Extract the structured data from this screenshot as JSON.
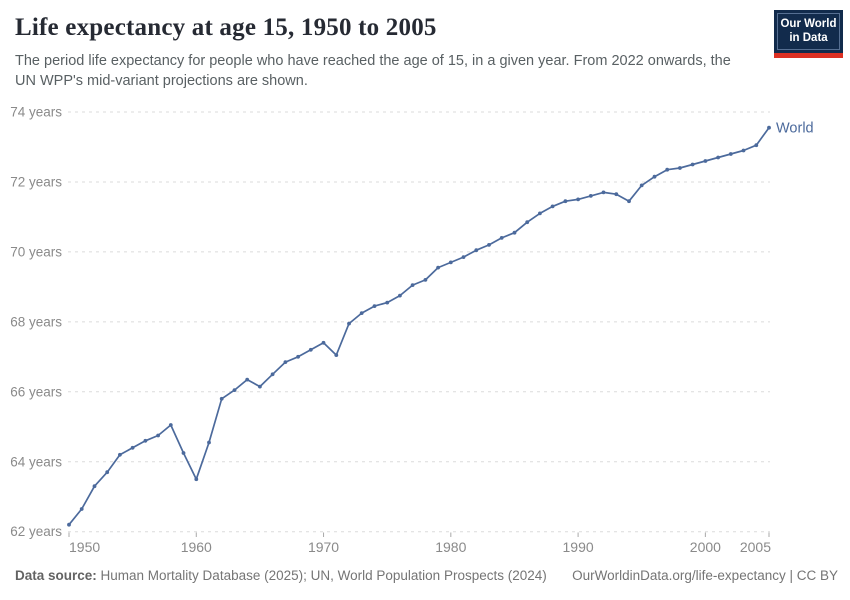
{
  "header": {
    "title": "Life expectancy at age 15, 1950 to 2005",
    "subtitle_line1": "The period life expectancy for people who have reached the age of 15, in a given year. From 2022 onwards, the",
    "subtitle_line2": "UN WPP's mid-variant projections are shown."
  },
  "logo": {
    "line1": "Our World",
    "line2": "in Data",
    "bg_color": "#122B4C",
    "stripe_color": "#DC3023"
  },
  "chart_data": {
    "type": "line",
    "title": "Life expectancy at age 15, 1950 to 2005",
    "series": [
      {
        "name": "World",
        "x": [
          1950,
          1951,
          1952,
          1953,
          1954,
          1955,
          1956,
          1957,
          1958,
          1959,
          1960,
          1961,
          1962,
          1963,
          1964,
          1965,
          1966,
          1967,
          1968,
          1969,
          1970,
          1971,
          1972,
          1973,
          1974,
          1975,
          1976,
          1977,
          1978,
          1979,
          1980,
          1981,
          1982,
          1983,
          1984,
          1985,
          1986,
          1987,
          1988,
          1989,
          1990,
          1991,
          1992,
          1993,
          1994,
          1995,
          1996,
          1997,
          1998,
          1999,
          2000,
          2001,
          2002,
          2003,
          2004,
          2005
        ],
        "values": [
          62.2,
          62.65,
          63.3,
          63.7,
          64.2,
          64.4,
          64.6,
          64.75,
          65.05,
          64.25,
          63.5,
          64.55,
          65.8,
          66.05,
          66.35,
          66.15,
          66.5,
          66.85,
          67.0,
          67.2,
          67.4,
          67.05,
          67.95,
          68.25,
          68.45,
          68.55,
          68.75,
          69.05,
          69.2,
          69.55,
          69.7,
          69.85,
          70.05,
          70.2,
          70.4,
          70.55,
          70.85,
          71.1,
          71.3,
          71.45,
          71.5,
          71.6,
          71.7,
          71.65,
          71.45,
          71.9,
          72.15,
          72.35,
          72.4,
          72.5,
          72.6,
          72.7,
          72.8,
          72.9,
          73.05,
          73.55
        ]
      }
    ],
    "series_end_label": "World",
    "xlabel": "",
    "ylabel": "",
    "xlim": [
      1950,
      2005
    ],
    "ylim": [
      62,
      74
    ],
    "xticks": [
      1950,
      1960,
      1970,
      1980,
      1990,
      2000,
      2005
    ],
    "yticks": [
      62,
      64,
      66,
      68,
      70,
      72,
      74
    ],
    "ytick_suffix": " years",
    "grid": "horizontal-dashed",
    "legend_position": "end-of-line",
    "line_color": "#4C6A9C",
    "grid_color": "#DBDBDB",
    "tick_text_color": "#8A8A8A",
    "tick_mark_color": "#A8A8A8"
  },
  "footer": {
    "source_label": "Data source:",
    "source_text": " Human Mortality Database (2025); UN, World Population Prospects (2024)",
    "credit": "OurWorldinData.org/life-expectancy | CC BY"
  }
}
